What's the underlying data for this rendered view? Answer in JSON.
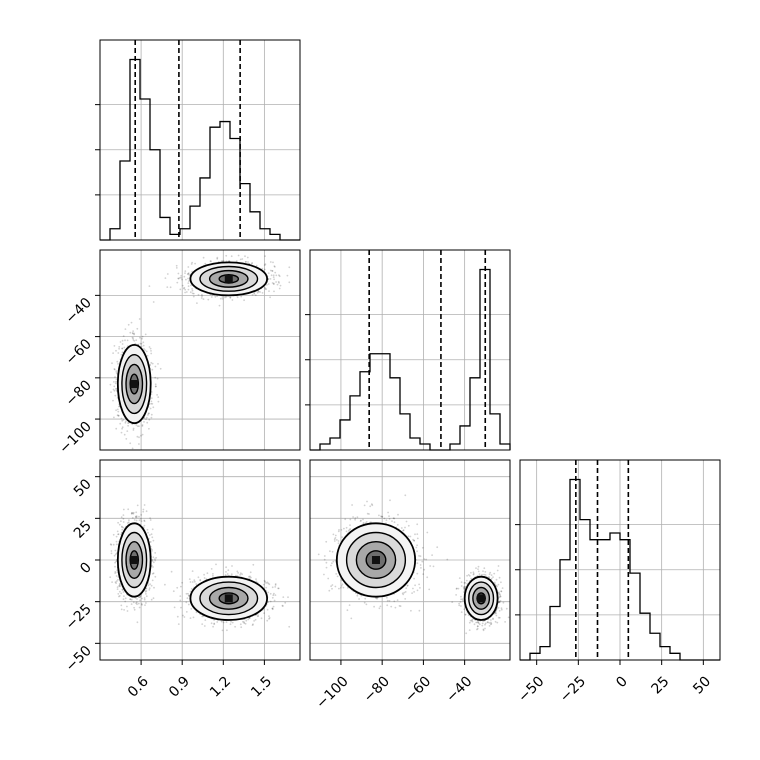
{
  "chart_data": {
    "type": "corner",
    "grid": true,
    "legend": "none",
    "colors": {
      "line": "#000000",
      "grid": "#b0b0b0",
      "scatter": "#000000",
      "hist2d": "#000000"
    },
    "parameters": [
      "",
      "",
      ""
    ],
    "histograms": [
      {
        "range": [
          0.3,
          1.76
        ],
        "bins": [
          0.3,
          0.373,
          0.446,
          0.519,
          0.592,
          0.665,
          0.738,
          0.811,
          0.884,
          0.957,
          1.03,
          1.103,
          1.176,
          1.249,
          1.322,
          1.395,
          1.468,
          1.541,
          1.614,
          1.687,
          1.76
        ],
        "counts": [
          0,
          2,
          14,
          32,
          25,
          16,
          4,
          1,
          2,
          6,
          11,
          20,
          21,
          18,
          10,
          5,
          2,
          1,
          0,
          0
        ],
        "quantiles": [
          0.557,
          0.876,
          1.323
        ],
        "ticks": [
          0.6,
          0.9,
          1.2,
          1.5
        ]
      },
      {
        "range": [
          -115,
          -18
        ],
        "bins": [
          -115,
          -110.15,
          -105.3,
          -100.45,
          -95.6,
          -90.75,
          -85.9,
          -81.05,
          -76.2,
          -71.35,
          -66.5,
          -61.65,
          -56.8,
          -51.95,
          -47.1,
          -42.25,
          -37.4,
          -32.55,
          -27.7,
          -22.85,
          -18
        ],
        "counts": [
          0,
          1,
          2,
          5,
          9,
          13,
          16,
          16,
          12,
          6,
          2,
          1,
          0,
          0,
          1,
          4,
          12,
          30,
          6,
          1
        ],
        "quantiles": [
          -86.3,
          -51.5,
          -30.0
        ],
        "ticks": [
          -100,
          -80,
          -60,
          -40
        ]
      },
      {
        "range": [
          -60,
          60
        ],
        "bins": [
          -60,
          -54,
          -48,
          -42,
          -36,
          -30,
          -24,
          -18,
          -12,
          -6,
          0,
          6,
          12,
          18,
          24,
          30,
          36,
          42,
          48,
          54,
          60
        ],
        "counts": [
          0,
          1,
          2,
          8,
          15,
          27,
          21,
          18,
          18,
          19,
          18,
          13,
          7,
          4,
          2,
          1,
          0,
          0,
          0,
          0
        ],
        "quantiles": [
          -26.5,
          -13.5,
          5.0
        ],
        "ticks": [
          -50,
          -25,
          0,
          25,
          50
        ]
      }
    ],
    "pairs": [
      {
        "x": 0,
        "y": 1,
        "xrange": [
          0.3,
          1.76
        ],
        "yrange": [
          -115,
          -18
        ],
        "xticks": [
          0.6,
          0.9,
          1.2,
          1.5
        ],
        "yticks": [
          -100,
          -80,
          -60,
          -40
        ],
        "modes": [
          {
            "center": [
              0.55,
              -83
            ],
            "spread": [
              0.06,
              9.5
            ],
            "weight": 0.5
          },
          {
            "center": [
              1.24,
              -32
            ],
            "spread": [
              0.14,
              4.0
            ],
            "weight": 0.5
          }
        ]
      },
      {
        "x": 0,
        "y": 2,
        "xrange": [
          0.3,
          1.76
        ],
        "yrange": [
          -60,
          60
        ],
        "xticks": [
          0.6,
          0.9,
          1.2,
          1.5
        ],
        "yticks": [
          -50,
          -25,
          0,
          25,
          50
        ],
        "modes": [
          {
            "center": [
              0.55,
              0
            ],
            "spread": [
              0.06,
              11
            ],
            "weight": 0.5
          },
          {
            "center": [
              1.24,
              -23
            ],
            "spread": [
              0.14,
              6.5
            ],
            "weight": 0.5
          }
        ]
      },
      {
        "x": 1,
        "y": 2,
        "xrange": [
          -115,
          -18
        ],
        "yrange": [
          -60,
          60
        ],
        "xticks": [
          -100,
          -80,
          -60,
          -40
        ],
        "yticks": [
          -50,
          -25,
          0,
          25,
          50
        ],
        "modes": [
          {
            "center": [
              -83,
              0
            ],
            "spread": [
              9.5,
              11
            ],
            "weight": 0.5
          },
          {
            "center": [
              -32,
              -23
            ],
            "spread": [
              4.0,
              6.5
            ],
            "weight": 0.5
          }
        ]
      }
    ],
    "tick_labels": {
      "x0": [
        "0.6",
        "0.9",
        "1.2",
        "1.5"
      ],
      "x1": [
        "−100",
        "−80",
        "−60",
        "−40"
      ],
      "x2": [
        "−50",
        "−25",
        "0",
        "25",
        "50"
      ],
      "y1": [
        "−100",
        "−80",
        "−60",
        "−40"
      ],
      "y2": [
        "−50",
        "−25",
        "0",
        "25",
        "50"
      ]
    }
  }
}
